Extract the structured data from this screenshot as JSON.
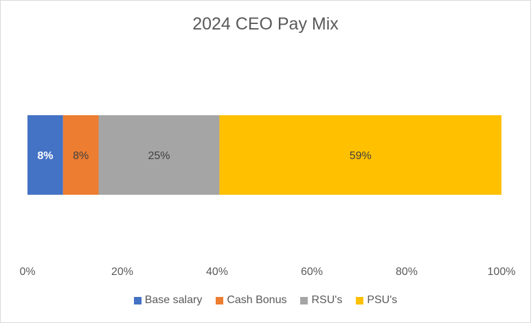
{
  "chart_data": {
    "type": "bar",
    "orientation": "horizontal",
    "stacked": "100%",
    "title": "2024 CEO Pay Mix",
    "xlim": [
      0,
      100
    ],
    "x_ticks": [
      "0%",
      "20%",
      "40%",
      "60%",
      "80%",
      "100%"
    ],
    "grid": false,
    "legend_position": "bottom",
    "series": [
      {
        "name": "Base salary",
        "value": 7.5,
        "label": "8%",
        "color": "#4472c4",
        "label_color": "#ffffff",
        "label_bold": true
      },
      {
        "name": "Cash Bonus",
        "value": 7.5,
        "label": "8%",
        "color": "#ed7d31",
        "label_color": "#404040",
        "label_bold": false
      },
      {
        "name": "RSU's",
        "value": 25.5,
        "label": "25%",
        "color": "#a5a5a5",
        "label_color": "#404040",
        "label_bold": false
      },
      {
        "name": "PSU's",
        "value": 59.5,
        "label": "59%",
        "color": "#ffc000",
        "label_color": "#404040",
        "label_bold": false
      }
    ]
  }
}
